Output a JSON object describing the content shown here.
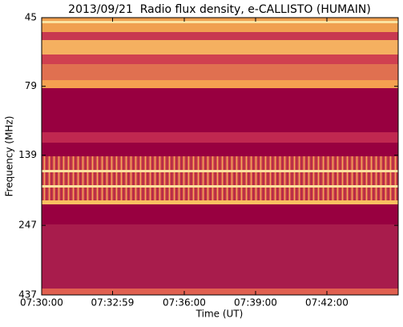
{
  "chart_data": {
    "type": "spectrogram",
    "title": "2013/09/21  Radio flux density, e-CALLISTO (HUMAIN)",
    "xlabel": "Time (UT)",
    "ylabel": "Frequency (MHz)",
    "xlim": [
      "07:30:00",
      "07:45:00"
    ],
    "xticks": [
      "07:30:00",
      "07:32:59",
      "07:36:00",
      "07:39:00",
      "07:42:00"
    ],
    "ylim": [
      45,
      437
    ],
    "yticks": [
      45,
      79,
      139,
      247,
      437
    ],
    "yscale": "log",
    "yinverted": true
  }
}
